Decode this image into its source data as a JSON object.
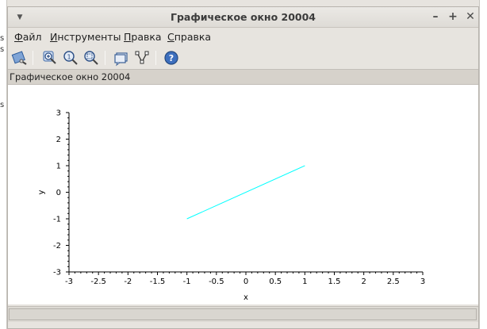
{
  "window": {
    "title": "Графическое окно 20004",
    "menu_icon": "▼",
    "minimize_label": "–",
    "maximize_label": "+",
    "close_label": "✕"
  },
  "menu": {
    "file": {
      "mnemonic": "Ф",
      "rest": "айл"
    },
    "tools": {
      "mnemonic": "И",
      "rest": "нструменты"
    },
    "edit": {
      "mnemonic": "П",
      "rest": "равка"
    },
    "help": {
      "mnemonic": "С",
      "rest": "правка"
    }
  },
  "toolbar": {
    "icons": [
      "rotate-icon",
      "zoom-in-icon",
      "zoom-reset-icon",
      "zoom-area-icon",
      "datatip-icon",
      "edit-curve-icon",
      "help-icon"
    ]
  },
  "figure_label": "Графическое окно 20004",
  "status_text": "",
  "desktop_left_text": "s\ns\n\n\n\n\ns",
  "colors": {
    "series": "#00ffff",
    "axis": "#000000",
    "canvas": "#ffffff"
  },
  "chart_data": {
    "type": "line",
    "xlabel": "x",
    "ylabel": "y",
    "xlim": [
      -3,
      3
    ],
    "ylim": [
      -3,
      3
    ],
    "xticks": [
      -3,
      -2.5,
      -2,
      -1.5,
      -1,
      -0.5,
      0,
      0.5,
      1,
      1.5,
      2,
      2.5,
      3
    ],
    "xtick_labels": [
      "-3",
      "-2.5",
      "-2",
      "-1.5",
      "-1",
      "-0.5",
      "0",
      "0.5",
      "1",
      "1.5",
      "2",
      "2.5",
      "3"
    ],
    "yticks": [
      -3,
      -2,
      -1,
      0,
      1,
      2,
      3
    ],
    "ytick_labels": [
      "-3",
      "-2",
      "-1",
      "0",
      "1",
      "2",
      "3"
    ],
    "grid": false,
    "series": [
      {
        "x": [
          -1,
          1
        ],
        "y": [
          -1,
          1
        ],
        "color": "#00ffff"
      }
    ]
  }
}
